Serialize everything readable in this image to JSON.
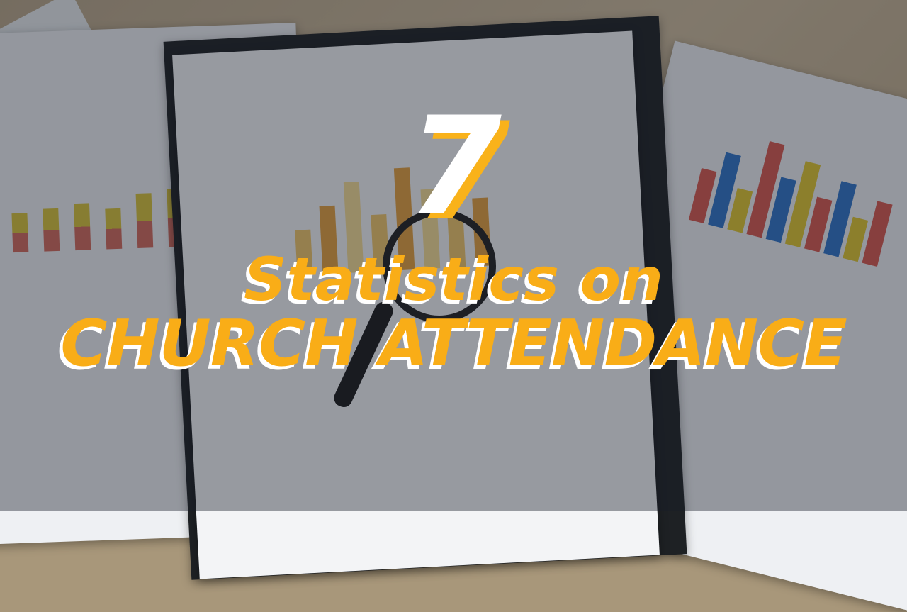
{
  "thumbnail": {
    "number": "7",
    "title_line1": "Statistics on",
    "title_line2": "CHURCH ATTENDANCE"
  },
  "colors": {
    "accent": "#f9ad17",
    "text_shadow": "#ffffff",
    "number": "#ffffff"
  },
  "background": {
    "bars_left": [
      0.5,
      0.55,
      0.6,
      0.52,
      0.7,
      0.75
    ],
    "bars_center": [
      0.4,
      0.6,
      0.8,
      0.5,
      0.9,
      0.7,
      0.45,
      0.6
    ],
    "bars_right": [
      0.5,
      0.7,
      0.4,
      0.9,
      0.6,
      0.8,
      0.5,
      0.7,
      0.4,
      0.6
    ]
  }
}
